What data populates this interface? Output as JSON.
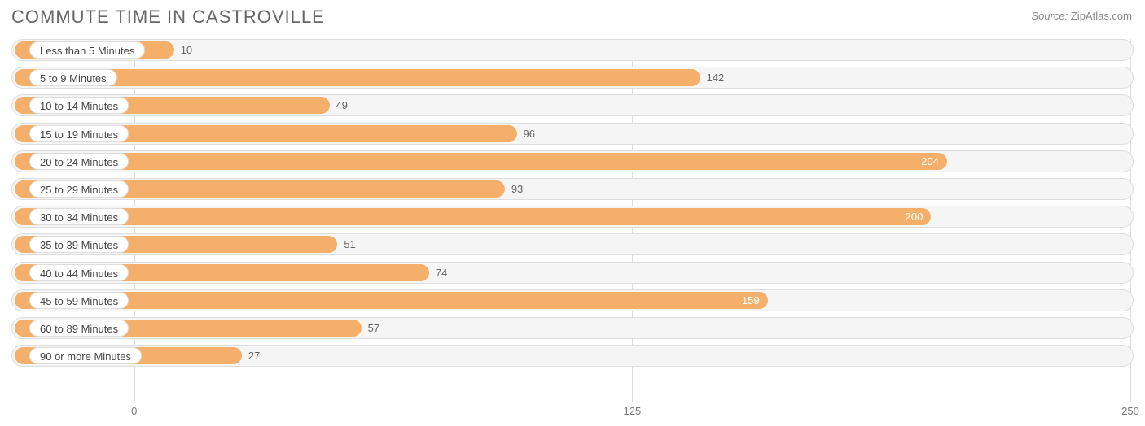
{
  "title": "COMMUTE TIME IN CASTROVILLE",
  "source_label": "Source:",
  "source_value": "ZipAtlas.com",
  "chart": {
    "type": "bar-horizontal",
    "bar_color": "#f4b06a",
    "bar_color_dark": "#ee9a4a",
    "track_bg": "#f5f5f5",
    "track_border": "#dddddd",
    "label_pill_bg": "#ffffff",
    "label_pill_border": "#dddddd",
    "grid_color": "#dddddd",
    "value_text_color": "#666666",
    "value_text_color_inside": "#ffffff",
    "title_color": "#666666",
    "title_fontsize": 22,
    "label_fontsize": 13,
    "xmin": -30,
    "xmax": 250,
    "xticks": [
      0,
      125,
      250
    ],
    "inside_label_threshold": 150,
    "categories": [
      "Less than 5 Minutes",
      "5 to 9 Minutes",
      "10 to 14 Minutes",
      "15 to 19 Minutes",
      "20 to 24 Minutes",
      "25 to 29 Minutes",
      "30 to 34 Minutes",
      "35 to 39 Minutes",
      "40 to 44 Minutes",
      "45 to 59 Minutes",
      "60 to 89 Minutes",
      "90 or more Minutes"
    ],
    "values": [
      10,
      142,
      49,
      96,
      204,
      93,
      200,
      51,
      74,
      159,
      57,
      27
    ]
  }
}
